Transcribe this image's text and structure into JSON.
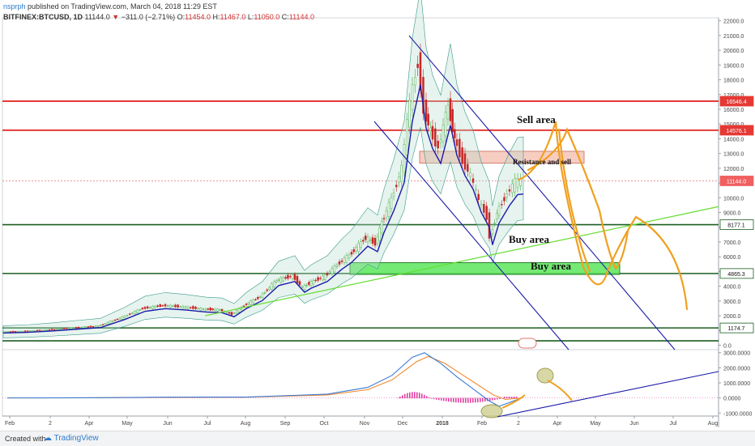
{
  "header": {
    "author": "nsprph",
    "published": "published on TradingView.com, March 04, 2018 11:29 EST",
    "symbol": "BITFINEX:BTCUSD, 1D",
    "last": "11144.0",
    "change": "−311.0 (−2.71%)",
    "o_label": "O:",
    "o_value": "11454.0",
    "h_label": "H:",
    "h_value": "11467.0",
    "l_label": "L:",
    "l_value": "11050.0",
    "c_label": "C:",
    "c_value": "11144.0"
  },
  "footer": {
    "created": "Created with",
    "brand": "TradingView"
  },
  "colors": {
    "resistance_line": "#e53935",
    "support_line": "#1b5e20",
    "channel": "#1a1aa8",
    "trend": "#66dd33",
    "projection": "#f0a020",
    "buy_zone": "#5ce65c",
    "sell_zone": "#f4b8a8",
    "macd": "#3a7bd5",
    "signal": "#f08a30",
    "hist": "#e040a0",
    "price_tag": "#e53935"
  },
  "chart_data": {
    "type": "candlestick",
    "ylim": [
      -300,
      22200
    ],
    "y_ticks": [
      "22000.0",
      "21000.0",
      "20000.0",
      "19000.0",
      "18000.0",
      "17000.0",
      "16000.0",
      "15000.0",
      "14000.0",
      "13000.0",
      "12000.0",
      "11000.0",
      "10000.0",
      "9000.0",
      "8000.0",
      "7000.0",
      "6000.0",
      "5000.0",
      "4000.0",
      "3000.0",
      "2000.0",
      "1000.0",
      "0.0"
    ],
    "x_ticks": [
      "Feb",
      "2",
      "Apr",
      "May",
      "Jun",
      "Jul",
      "Aug",
      "Sep",
      "Oct",
      "Nov",
      "Dec",
      "2018",
      "Feb",
      "2",
      "Apr",
      "May",
      "Jun",
      "Jul",
      "Aug"
    ],
    "price_tags": [
      {
        "label": "16546.4",
        "value": 16546.4,
        "kind": "resistance"
      },
      {
        "label": "14576.1",
        "value": 14576.1,
        "kind": "resistance"
      },
      {
        "label": "11144.0",
        "value": 11144.0,
        "kind": "current"
      },
      {
        "label": "8177.1",
        "value": 8177.1,
        "kind": "support"
      },
      {
        "label": "4865.3",
        "value": 4865.3,
        "kind": "support"
      },
      {
        "label": "1174.7",
        "value": 1174.7,
        "kind": "support"
      }
    ],
    "price_series": [
      [
        0,
        900
      ],
      [
        30,
        950
      ],
      [
        60,
        1050
      ],
      [
        90,
        1180
      ],
      [
        120,
        1300
      ],
      [
        150,
        1900
      ],
      [
        175,
        2500
      ],
      [
        200,
        2700
      ],
      [
        225,
        2600
      ],
      [
        250,
        2450
      ],
      [
        270,
        2400
      ],
      [
        285,
        2100
      ],
      [
        300,
        2700
      ],
      [
        320,
        3300
      ],
      [
        340,
        4400
      ],
      [
        360,
        4700
      ],
      [
        372,
        3900
      ],
      [
        380,
        4200
      ],
      [
        400,
        4700
      ],
      [
        418,
        5600
      ],
      [
        430,
        6100
      ],
      [
        450,
        7300
      ],
      [
        462,
        6900
      ],
      [
        470,
        8300
      ],
      [
        482,
        9900
      ],
      [
        495,
        12000
      ],
      [
        505,
        16500
      ],
      [
        515,
        19200
      ],
      [
        522,
        16000
      ],
      [
        530,
        14500
      ],
      [
        540,
        13400
      ],
      [
        552,
        16200
      ],
      [
        560,
        14000
      ],
      [
        570,
        12500
      ],
      [
        580,
        11500
      ],
      [
        590,
        9800
      ],
      [
        600,
        8700
      ],
      [
        604,
        7400
      ],
      [
        612,
        9000
      ],
      [
        625,
        10300
      ],
      [
        635,
        11100
      ],
      [
        642,
        11144
      ]
    ],
    "annotations": [
      "Sell area",
      "Resistance and sell",
      "Buy area",
      "Buy area"
    ],
    "macd": {
      "ylim": [
        -1200,
        3200
      ],
      "y_ticks": [
        "3000.0000",
        "2000.0000",
        "1000.0000",
        "0.0000",
        "-1000.0000"
      ],
      "macd_series": [
        [
          5,
          0
        ],
        [
          100,
          10
        ],
        [
          200,
          50
        ],
        [
          300,
          60
        ],
        [
          400,
          250
        ],
        [
          450,
          700
        ],
        [
          480,
          1500
        ],
        [
          505,
          2700
        ],
        [
          520,
          3000
        ],
        [
          540,
          2300
        ],
        [
          560,
          1400
        ],
        [
          580,
          600
        ],
        [
          600,
          -200
        ],
        [
          612,
          -550
        ],
        [
          625,
          -300
        ],
        [
          640,
          0
        ]
      ],
      "signal_series": [
        [
          5,
          0
        ],
        [
          100,
          10
        ],
        [
          200,
          40
        ],
        [
          300,
          50
        ],
        [
          400,
          200
        ],
        [
          450,
          550
        ],
        [
          480,
          1200
        ],
        [
          510,
          2400
        ],
        [
          525,
          2750
        ],
        [
          545,
          2300
        ],
        [
          565,
          1600
        ],
        [
          585,
          900
        ],
        [
          605,
          200
        ],
        [
          620,
          -100
        ],
        [
          640,
          0
        ]
      ]
    }
  }
}
